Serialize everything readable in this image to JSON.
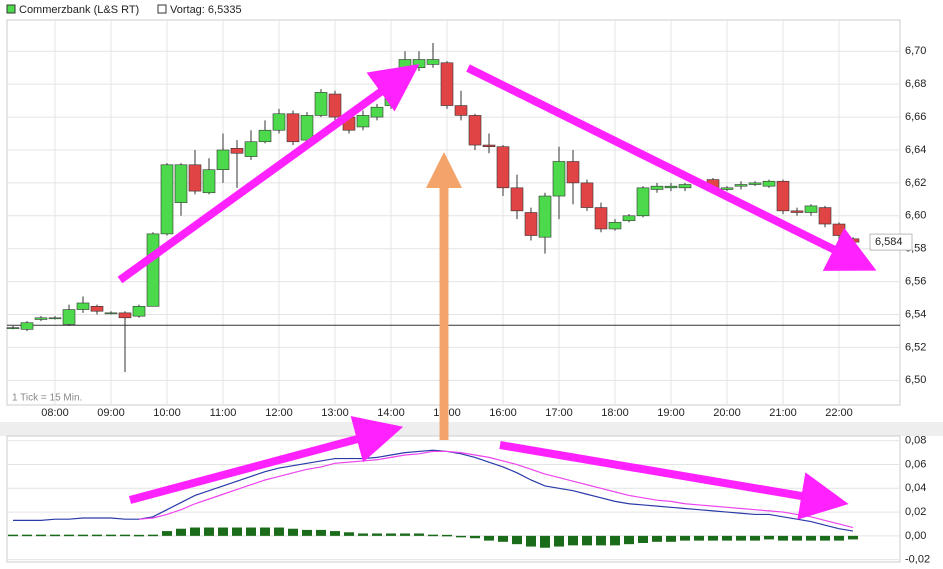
{
  "chart_data": [
    {
      "type": "candlestick",
      "series_name": "Commerzbank (L&S RT)",
      "up_color": "#4cd94c",
      "down_color": "#e04444",
      "reference": {
        "label": "Vortag: 6,5335",
        "value": 6.5335
      },
      "last_price": {
        "value": 6.584,
        "label": "6,584"
      },
      "annotation": "1 Tick = 15 Min.",
      "grid": true,
      "categories": [
        null,
        null,
        null,
        "08:00",
        null,
        null,
        null,
        "09:00",
        null,
        null,
        null,
        "10:00",
        null,
        null,
        null,
        "11:00",
        null,
        null,
        null,
        "12:00",
        null,
        null,
        null,
        "13:00",
        null,
        null,
        null,
        "14:00",
        null,
        null,
        null,
        "15:00",
        null,
        null,
        null,
        "16:00",
        null,
        null,
        null,
        "17:00",
        null,
        null,
        null,
        "18:00",
        null,
        null,
        null,
        "19:00",
        null,
        null,
        null,
        "20:00",
        null,
        null,
        null,
        "21:00",
        null,
        null,
        null,
        "22:00",
        null
      ],
      "open": [
        6.532,
        6.531,
        6.537,
        6.538,
        6.534,
        6.543,
        6.545,
        6.541,
        6.541,
        6.539,
        6.545,
        6.589,
        6.608,
        6.631,
        6.614,
        6.628,
        6.641,
        6.636,
        6.645,
        6.652,
        6.662,
        6.646,
        6.661,
        6.674,
        6.66,
        6.654,
        6.66,
        6.667,
        6.688,
        6.69,
        6.692,
        6.693,
        6.667,
        6.661,
        6.643,
        6.642,
        6.617,
        6.602,
        6.587,
        6.612,
        6.633,
        6.62,
        6.605,
        6.592,
        6.597,
        6.6,
        6.616,
        6.617,
        6.617,
        6.62,
        6.622,
        6.616,
        6.618,
        6.619,
        6.618,
        6.621,
        6.603,
        6.602,
        6.605,
        6.595,
        6.586
      ],
      "high": [
        6.533,
        6.536,
        6.539,
        6.539,
        6.546,
        6.551,
        6.546,
        6.542,
        6.542,
        6.546,
        6.59,
        6.632,
        6.632,
        6.64,
        6.635,
        6.65,
        6.646,
        6.652,
        6.658,
        6.665,
        6.664,
        6.663,
        6.677,
        6.676,
        6.662,
        6.664,
        6.668,
        6.689,
        6.7,
        6.7,
        6.705,
        6.694,
        6.676,
        6.662,
        6.65,
        6.643,
        6.625,
        6.605,
        6.614,
        6.642,
        6.64,
        6.622,
        6.608,
        6.598,
        6.601,
        6.618,
        6.62,
        6.62,
        6.62,
        6.621,
        6.623,
        6.618,
        6.621,
        6.621,
        6.622,
        6.622,
        6.605,
        6.607,
        6.606,
        6.596,
        6.587
      ],
      "low": [
        6.531,
        6.53,
        6.536,
        6.537,
        6.533,
        6.541,
        6.54,
        6.54,
        6.505,
        6.538,
        6.545,
        6.588,
        6.6,
        6.613,
        6.613,
        6.62,
        6.617,
        6.634,
        6.644,
        6.65,
        6.643,
        6.645,
        6.66,
        6.658,
        6.65,
        6.652,
        6.658,
        6.665,
        6.686,
        6.688,
        6.69,
        6.665,
        6.658,
        6.64,
        6.638,
        6.612,
        6.598,
        6.585,
        6.577,
        6.598,
        6.607,
        6.603,
        6.59,
        6.591,
        6.596,
        6.599,
        6.614,
        6.615,
        6.615,
        6.619,
        6.614,
        6.615,
        6.616,
        6.618,
        6.617,
        6.601,
        6.6,
        6.6,
        6.593,
        6.585,
        6.583
      ],
      "close": [
        6.532,
        6.535,
        6.538,
        6.538,
        6.543,
        6.547,
        6.542,
        6.541,
        6.538,
        6.545,
        6.589,
        6.631,
        6.631,
        6.615,
        6.628,
        6.64,
        6.638,
        6.645,
        6.652,
        6.662,
        6.645,
        6.661,
        6.675,
        6.66,
        6.652,
        6.661,
        6.666,
        6.687,
        6.695,
        6.695,
        6.695,
        6.667,
        6.661,
        6.643,
        6.642,
        6.617,
        6.603,
        6.588,
        6.612,
        6.633,
        6.62,
        6.605,
        6.592,
        6.596,
        6.6,
        6.617,
        6.618,
        6.618,
        6.619,
        6.62,
        6.616,
        6.617,
        6.619,
        6.62,
        6.621,
        6.603,
        6.602,
        6.606,
        6.595,
        6.588,
        6.584
      ],
      "ylim": [
        6.485,
        6.719
      ],
      "yticks": [
        {
          "value": 6.5,
          "label": "6,50"
        },
        {
          "value": 6.52,
          "label": "6,52"
        },
        {
          "value": 6.54,
          "label": "6,54"
        },
        {
          "value": 6.56,
          "label": "6,56"
        },
        {
          "value": 6.58,
          "label": "6,58"
        },
        {
          "value": 6.6,
          "label": "6,60"
        },
        {
          "value": 6.62,
          "label": "6,62"
        },
        {
          "value": 6.64,
          "label": "6,64"
        },
        {
          "value": 6.66,
          "label": "6,66"
        },
        {
          "value": 6.68,
          "label": "6,68"
        },
        {
          "value": 6.7,
          "label": "6,70"
        }
      ]
    },
    {
      "type": "line",
      "series": [
        {
          "kind": "bar",
          "color": "#1a6b1a",
          "values": [
            0.001,
            0.001,
            0.001,
            0.001,
            0.001,
            0.001,
            0.001,
            0.001,
            0.001,
            0.0,
            0.001,
            0.004,
            0.006,
            0.007,
            0.007,
            0.007,
            0.007,
            0.007,
            0.007,
            0.007,
            0.006,
            0.005,
            0.005,
            0.004,
            0.003,
            0.002,
            0.002,
            0.002,
            0.002,
            0.002,
            0.001,
            0.0,
            -0.001,
            -0.002,
            -0.004,
            -0.005,
            -0.007,
            -0.009,
            -0.01,
            -0.009,
            -0.008,
            -0.008,
            -0.008,
            -0.008,
            -0.007,
            -0.006,
            -0.005,
            -0.005,
            -0.004,
            -0.004,
            -0.004,
            -0.004,
            -0.004,
            -0.004,
            -0.003,
            -0.004,
            -0.004,
            -0.004,
            -0.004,
            -0.004,
            -0.003
          ]
        },
        {
          "kind": "line",
          "color": "#2a3aa8",
          "values": [
            0.013,
            0.013,
            0.013,
            0.014,
            0.014,
            0.015,
            0.015,
            0.015,
            0.014,
            0.014,
            0.016,
            0.022,
            0.028,
            0.034,
            0.038,
            0.042,
            0.046,
            0.05,
            0.054,
            0.057,
            0.059,
            0.061,
            0.063,
            0.065,
            0.065,
            0.065,
            0.066,
            0.068,
            0.07,
            0.071,
            0.072,
            0.071,
            0.069,
            0.066,
            0.062,
            0.058,
            0.053,
            0.047,
            0.042,
            0.04,
            0.038,
            0.035,
            0.032,
            0.029,
            0.027,
            0.026,
            0.025,
            0.024,
            0.023,
            0.022,
            0.021,
            0.02,
            0.019,
            0.018,
            0.018,
            0.016,
            0.014,
            0.012,
            0.009,
            0.006,
            0.004
          ]
        },
        {
          "kind": "line",
          "color": "#ee44ee",
          "values": [
            null,
            null,
            null,
            null,
            null,
            null,
            null,
            null,
            null,
            0.014,
            0.015,
            0.018,
            0.022,
            0.027,
            0.031,
            0.035,
            0.039,
            0.043,
            0.047,
            0.05,
            0.053,
            0.056,
            0.058,
            0.061,
            0.062,
            0.063,
            0.064,
            0.066,
            0.068,
            0.069,
            0.071,
            0.071,
            0.07,
            0.068,
            0.066,
            0.063,
            0.06,
            0.056,
            0.052,
            0.049,
            0.046,
            0.043,
            0.04,
            0.037,
            0.034,
            0.032,
            0.03,
            0.029,
            0.027,
            0.026,
            0.025,
            0.024,
            0.023,
            0.022,
            0.021,
            0.02,
            0.018,
            0.016,
            0.013,
            0.01,
            0.007
          ]
        }
      ],
      "ylim": [
        -0.022,
        0.084
      ],
      "yticks": [
        {
          "value": -0.02,
          "label": "-0,02"
        },
        {
          "value": 0,
          "label": "0,00"
        },
        {
          "value": 0.02,
          "label": "0,02"
        },
        {
          "value": 0.04,
          "label": "0,04"
        },
        {
          "value": 0.06,
          "label": "0,06"
        },
        {
          "value": 0.08,
          "label": "0,08"
        }
      ]
    }
  ]
}
